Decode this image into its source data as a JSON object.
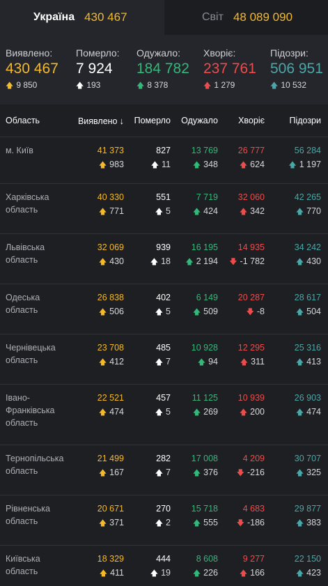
{
  "tabs": {
    "ukraine": {
      "label": "Україна",
      "count": "430 467"
    },
    "world": {
      "label": "Світ",
      "count": "48 089 090"
    }
  },
  "summary": {
    "detected": {
      "label": "Виявлено:",
      "value": "430 467",
      "delta": "9 850"
    },
    "died": {
      "label": "Померло:",
      "value": "7 924",
      "delta": "193"
    },
    "recovered": {
      "label": "Одужало:",
      "value": "184 782",
      "delta": "8 378"
    },
    "sick": {
      "label": "Хворіє:",
      "value": "237 761",
      "delta": "1 279"
    },
    "suspected": {
      "label": "Підозри:",
      "value": "506 951",
      "delta": "10 532"
    }
  },
  "table": {
    "headers": {
      "region": "Область",
      "detected": "Виявлено",
      "died": "Померло",
      "recovered": "Одужало",
      "sick": "Хворіє",
      "suspected": "Підозри"
    },
    "sort_icon": "arrow-down-icon",
    "rows": [
      {
        "region": "м. Київ",
        "detected": "41 373",
        "detected_d": "983",
        "died": "827",
        "died_d": "11",
        "recovered": "13 769",
        "recovered_d": "348",
        "sick": "26 777",
        "sick_d": "624",
        "sick_dir": "up",
        "suspected": "56 284",
        "suspected_d": "1 197"
      },
      {
        "region": "Харківська область",
        "detected": "40 330",
        "detected_d": "771",
        "died": "551",
        "died_d": "5",
        "recovered": "7 719",
        "recovered_d": "424",
        "sick": "32 060",
        "sick_d": "342",
        "sick_dir": "up",
        "suspected": "42 265",
        "suspected_d": "770"
      },
      {
        "region": "Львівська область",
        "detected": "32 069",
        "detected_d": "430",
        "died": "939",
        "died_d": "18",
        "recovered": "16 195",
        "recovered_d": "2 194",
        "sick": "14 935",
        "sick_d": "-1 782",
        "sick_dir": "down",
        "suspected": "34 242",
        "suspected_d": "430"
      },
      {
        "region": "Одеська область",
        "detected": "26 838",
        "detected_d": "506",
        "died": "402",
        "died_d": "5",
        "recovered": "6 149",
        "recovered_d": "509",
        "sick": "20 287",
        "sick_d": "-8",
        "sick_dir": "down",
        "suspected": "28 617",
        "suspected_d": "504"
      },
      {
        "region": "Чернівецька область",
        "detected": "23 708",
        "detected_d": "412",
        "died": "485",
        "died_d": "7",
        "recovered": "10 928",
        "recovered_d": "94",
        "sick": "12 295",
        "sick_d": "311",
        "sick_dir": "up",
        "suspected": "25 316",
        "suspected_d": "413"
      },
      {
        "region": "Івано-Франківська область",
        "detected": "22 521",
        "detected_d": "474",
        "died": "457",
        "died_d": "5",
        "recovered": "11 125",
        "recovered_d": "269",
        "sick": "10 939",
        "sick_d": "200",
        "sick_dir": "up",
        "suspected": "26 903",
        "suspected_d": "474"
      },
      {
        "region": "Тернопільська область",
        "detected": "21 499",
        "detected_d": "167",
        "died": "282",
        "died_d": "7",
        "recovered": "17 008",
        "recovered_d": "376",
        "sick": "4 209",
        "sick_d": "-216",
        "sick_dir": "down",
        "suspected": "30 707",
        "suspected_d": "325"
      },
      {
        "region": "Рівненська область",
        "detected": "20 671",
        "detected_d": "371",
        "died": "270",
        "died_d": "2",
        "recovered": "15 718",
        "recovered_d": "555",
        "sick": "4 683",
        "sick_d": "-186",
        "sick_dir": "down",
        "suspected": "29 877",
        "suspected_d": "383"
      },
      {
        "region": "Київська область",
        "detected": "18 329",
        "detected_d": "411",
        "died": "444",
        "died_d": "19",
        "recovered": "8 608",
        "recovered_d": "226",
        "sick": "9 277",
        "sick_d": "166",
        "sick_dir": "up",
        "suspected": "22 150",
        "suspected_d": "423"
      }
    ]
  },
  "colors": {
    "detected": "#f5b92a",
    "died": "#ffffff",
    "recovered": "#33b87a",
    "sick": "#ee4b4b",
    "suspected": "#4ba7a7",
    "background": "#24262b",
    "table_background": "#1e1f23"
  }
}
